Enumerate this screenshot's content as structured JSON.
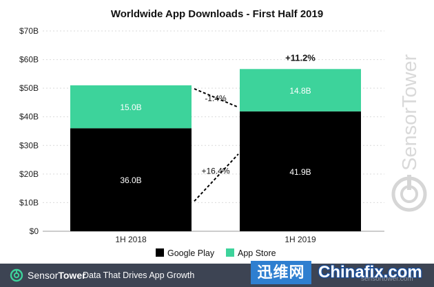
{
  "chart_data": {
    "type": "bar",
    "stacked": true,
    "title": "Worldwide App Downloads - First Half 2019",
    "categories": [
      "1H 2018",
      "1H 2019"
    ],
    "series": [
      {
        "name": "Google Play",
        "values": [
          36.0,
          41.9
        ],
        "labels": [
          "36.0B",
          "41.9B"
        ],
        "color": "#000000"
      },
      {
        "name": "App Store",
        "values": [
          15.0,
          14.8
        ],
        "labels": [
          "15.0B",
          "14.8B"
        ],
        "color": "#3dd39b"
      }
    ],
    "ylim": [
      0,
      70
    ],
    "yticks": [
      "$0",
      "$10B",
      "$20B",
      "$30B",
      "$40B",
      "$50B",
      "$60B",
      "$70B"
    ],
    "total_change": "+11.2%",
    "annotations": {
      "app_store_change": "-1.4%",
      "google_play_change": "+16.4%"
    },
    "grid": true,
    "legend_position": "bottom"
  },
  "watermark": {
    "text": "SensorTower"
  },
  "footer": {
    "brand_first": "Sensor",
    "brand_second": "Tower",
    "tagline": "Data That Drives App Growth",
    "overlay_badge": "迅维网",
    "overlay_brand": "Chinafix.com",
    "overlay_sub": "sensortower.com"
  }
}
